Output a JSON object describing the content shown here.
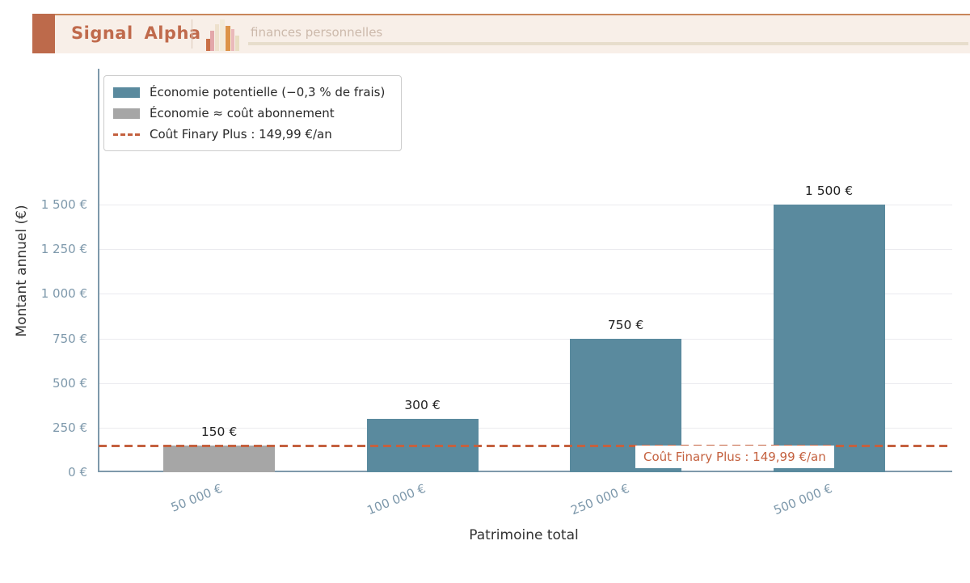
{
  "header": {
    "brand": "Signal Alpha",
    "tagline": "finances personnelles",
    "logo": "bar-chart-logo"
  },
  "colors": {
    "accent_terracotta": "#bd6a4b",
    "brand_text": "#c06a4c",
    "header_background": "#f8efe8",
    "bar_teal": "#5a8a9e",
    "bar_gray": "#a6a6a6",
    "reference_orange": "#c4613f",
    "tick_label_blue": "#7d98ab"
  },
  "chart_data": {
    "type": "bar",
    "title": "",
    "xlabel": "Patrimoine total",
    "ylabel": "Montant annuel (€)",
    "categories": [
      "50 000 €",
      "100 000 €",
      "250 000 €",
      "500 000 €"
    ],
    "values": [
      150,
      300,
      750,
      1500
    ],
    "value_labels": [
      "150 €",
      "300 €",
      "750 €",
      "1 500 €"
    ],
    "bar_colors": [
      "#a6a6a6",
      "#5a8a9e",
      "#5a8a9e",
      "#5a8a9e"
    ],
    "y_ticks": [
      {
        "value": 0,
        "label": "0 €"
      },
      {
        "value": 250,
        "label": "250 €"
      },
      {
        "value": 500,
        "label": "500 €"
      },
      {
        "value": 750,
        "label": "750 €"
      },
      {
        "value": 1000,
        "label": "1 000 €"
      },
      {
        "value": 1250,
        "label": "1 250 €"
      },
      {
        "value": 1500,
        "label": "1 500 €"
      }
    ],
    "ylim": [
      0,
      2250
    ],
    "grid": true,
    "reference_line": {
      "value": 149.99,
      "label": "Coût Finary Plus : 149,99 €/an",
      "color": "#c4613f",
      "style": "dashed"
    },
    "legend": {
      "position": "upper-left",
      "entries": [
        {
          "swatch": "teal-rect",
          "color": "#5a8a9e",
          "label": "Économie potentielle (−0,3 % de frais)"
        },
        {
          "swatch": "gray-rect",
          "color": "#a6a6a6",
          "label": "Économie ≈ coût abonnement"
        },
        {
          "swatch": "dashed-line",
          "color": "#c4613f",
          "label": "Coût Finary Plus : 149,99 €/an"
        }
      ]
    },
    "logo_bars": [
      {
        "x": 5,
        "w": 5,
        "h": 15,
        "color": "#c96f47"
      },
      {
        "x": 10,
        "w": 5,
        "h": 25,
        "color": "#e3a7aa"
      },
      {
        "x": 16,
        "w": 5,
        "h": 33,
        "color": "#eee1cd"
      },
      {
        "x": 22,
        "w": 6,
        "h": 39,
        "color": "#f2ead9"
      },
      {
        "x": 29,
        "w": 6,
        "h": 31,
        "color": "#dc9348"
      },
      {
        "x": 36,
        "w": 4,
        "h": 27,
        "color": "#eab9ba"
      },
      {
        "x": 41,
        "w": 5,
        "h": 19,
        "color": "#e8ddc2"
      }
    ]
  }
}
